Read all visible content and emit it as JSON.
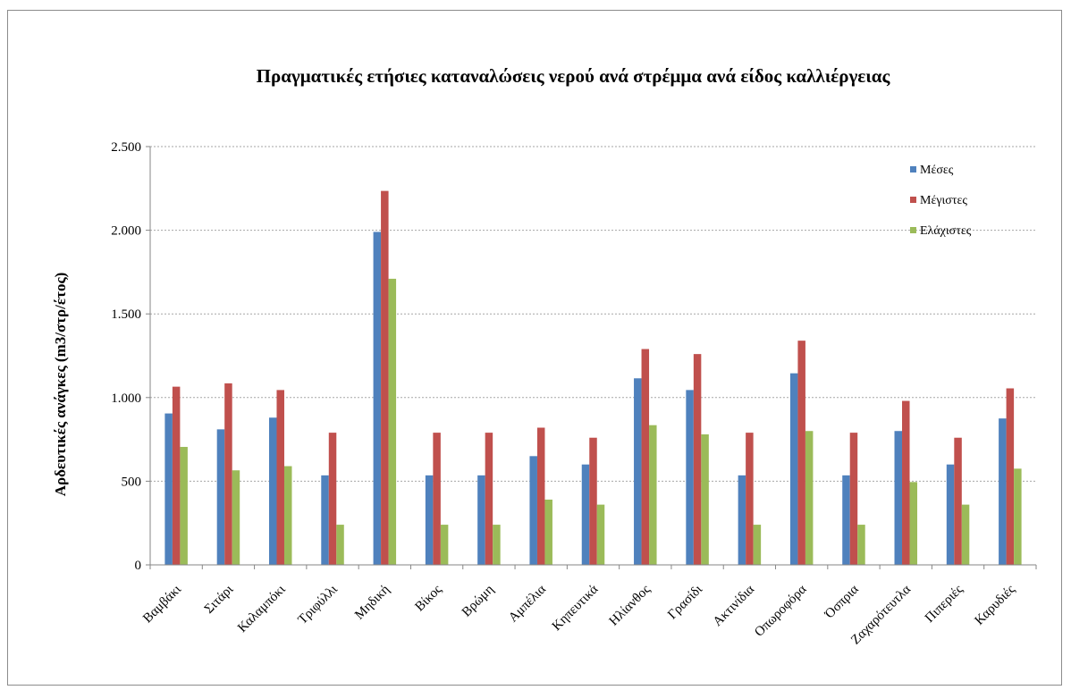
{
  "chart_data": {
    "type": "bar",
    "title": "Πραγματικές ετήσιες καταναλώσεις νερού ανά στρέμμα ανά είδος καλλιέργειας",
    "xlabel": "",
    "ylabel": "Αρδευτικές ανάγκες (m3/στρ/έτος)",
    "ylim": [
      0,
      2500
    ],
    "yticks": [
      0,
      500,
      1000,
      1500,
      2000,
      2500
    ],
    "ytick_labels": [
      "0",
      "500",
      "1.000",
      "1.500",
      "2.000",
      "2.500"
    ],
    "grid": "horizontal dotted",
    "legend_position": "top-right",
    "categories": [
      "Βαμβάκι",
      "Σιτάρι",
      "Καλαμπόκι",
      "Τριφύλλι",
      "Μηδική",
      "Βίκος",
      "Βρώμη",
      "Αμπέλια",
      "Κηπευτικά",
      "Ηλίανθος",
      "Γρασίδι",
      "Ακτινίδια",
      "Οπωροφόρα",
      "Όσπρια",
      "Ζαχαρότευτλα",
      "Πιπεριές",
      "Καρυδιές"
    ],
    "series": [
      {
        "name": "Μέσες",
        "color": "#4f81bd",
        "values": [
          905,
          810,
          880,
          535,
          1990,
          535,
          535,
          650,
          600,
          1115,
          1045,
          535,
          1145,
          535,
          800,
          600,
          875
        ]
      },
      {
        "name": "Μέγιστες",
        "color": "#c0504d",
        "values": [
          1065,
          1085,
          1045,
          790,
          2235,
          790,
          790,
          820,
          760,
          1290,
          1260,
          790,
          1340,
          790,
          980,
          760,
          1055
        ]
      },
      {
        "name": "Ελάχιστες",
        "color": "#9bbb59",
        "values": [
          705,
          565,
          590,
          240,
          1710,
          240,
          240,
          390,
          360,
          835,
          780,
          240,
          800,
          240,
          495,
          360,
          575
        ]
      }
    ]
  }
}
